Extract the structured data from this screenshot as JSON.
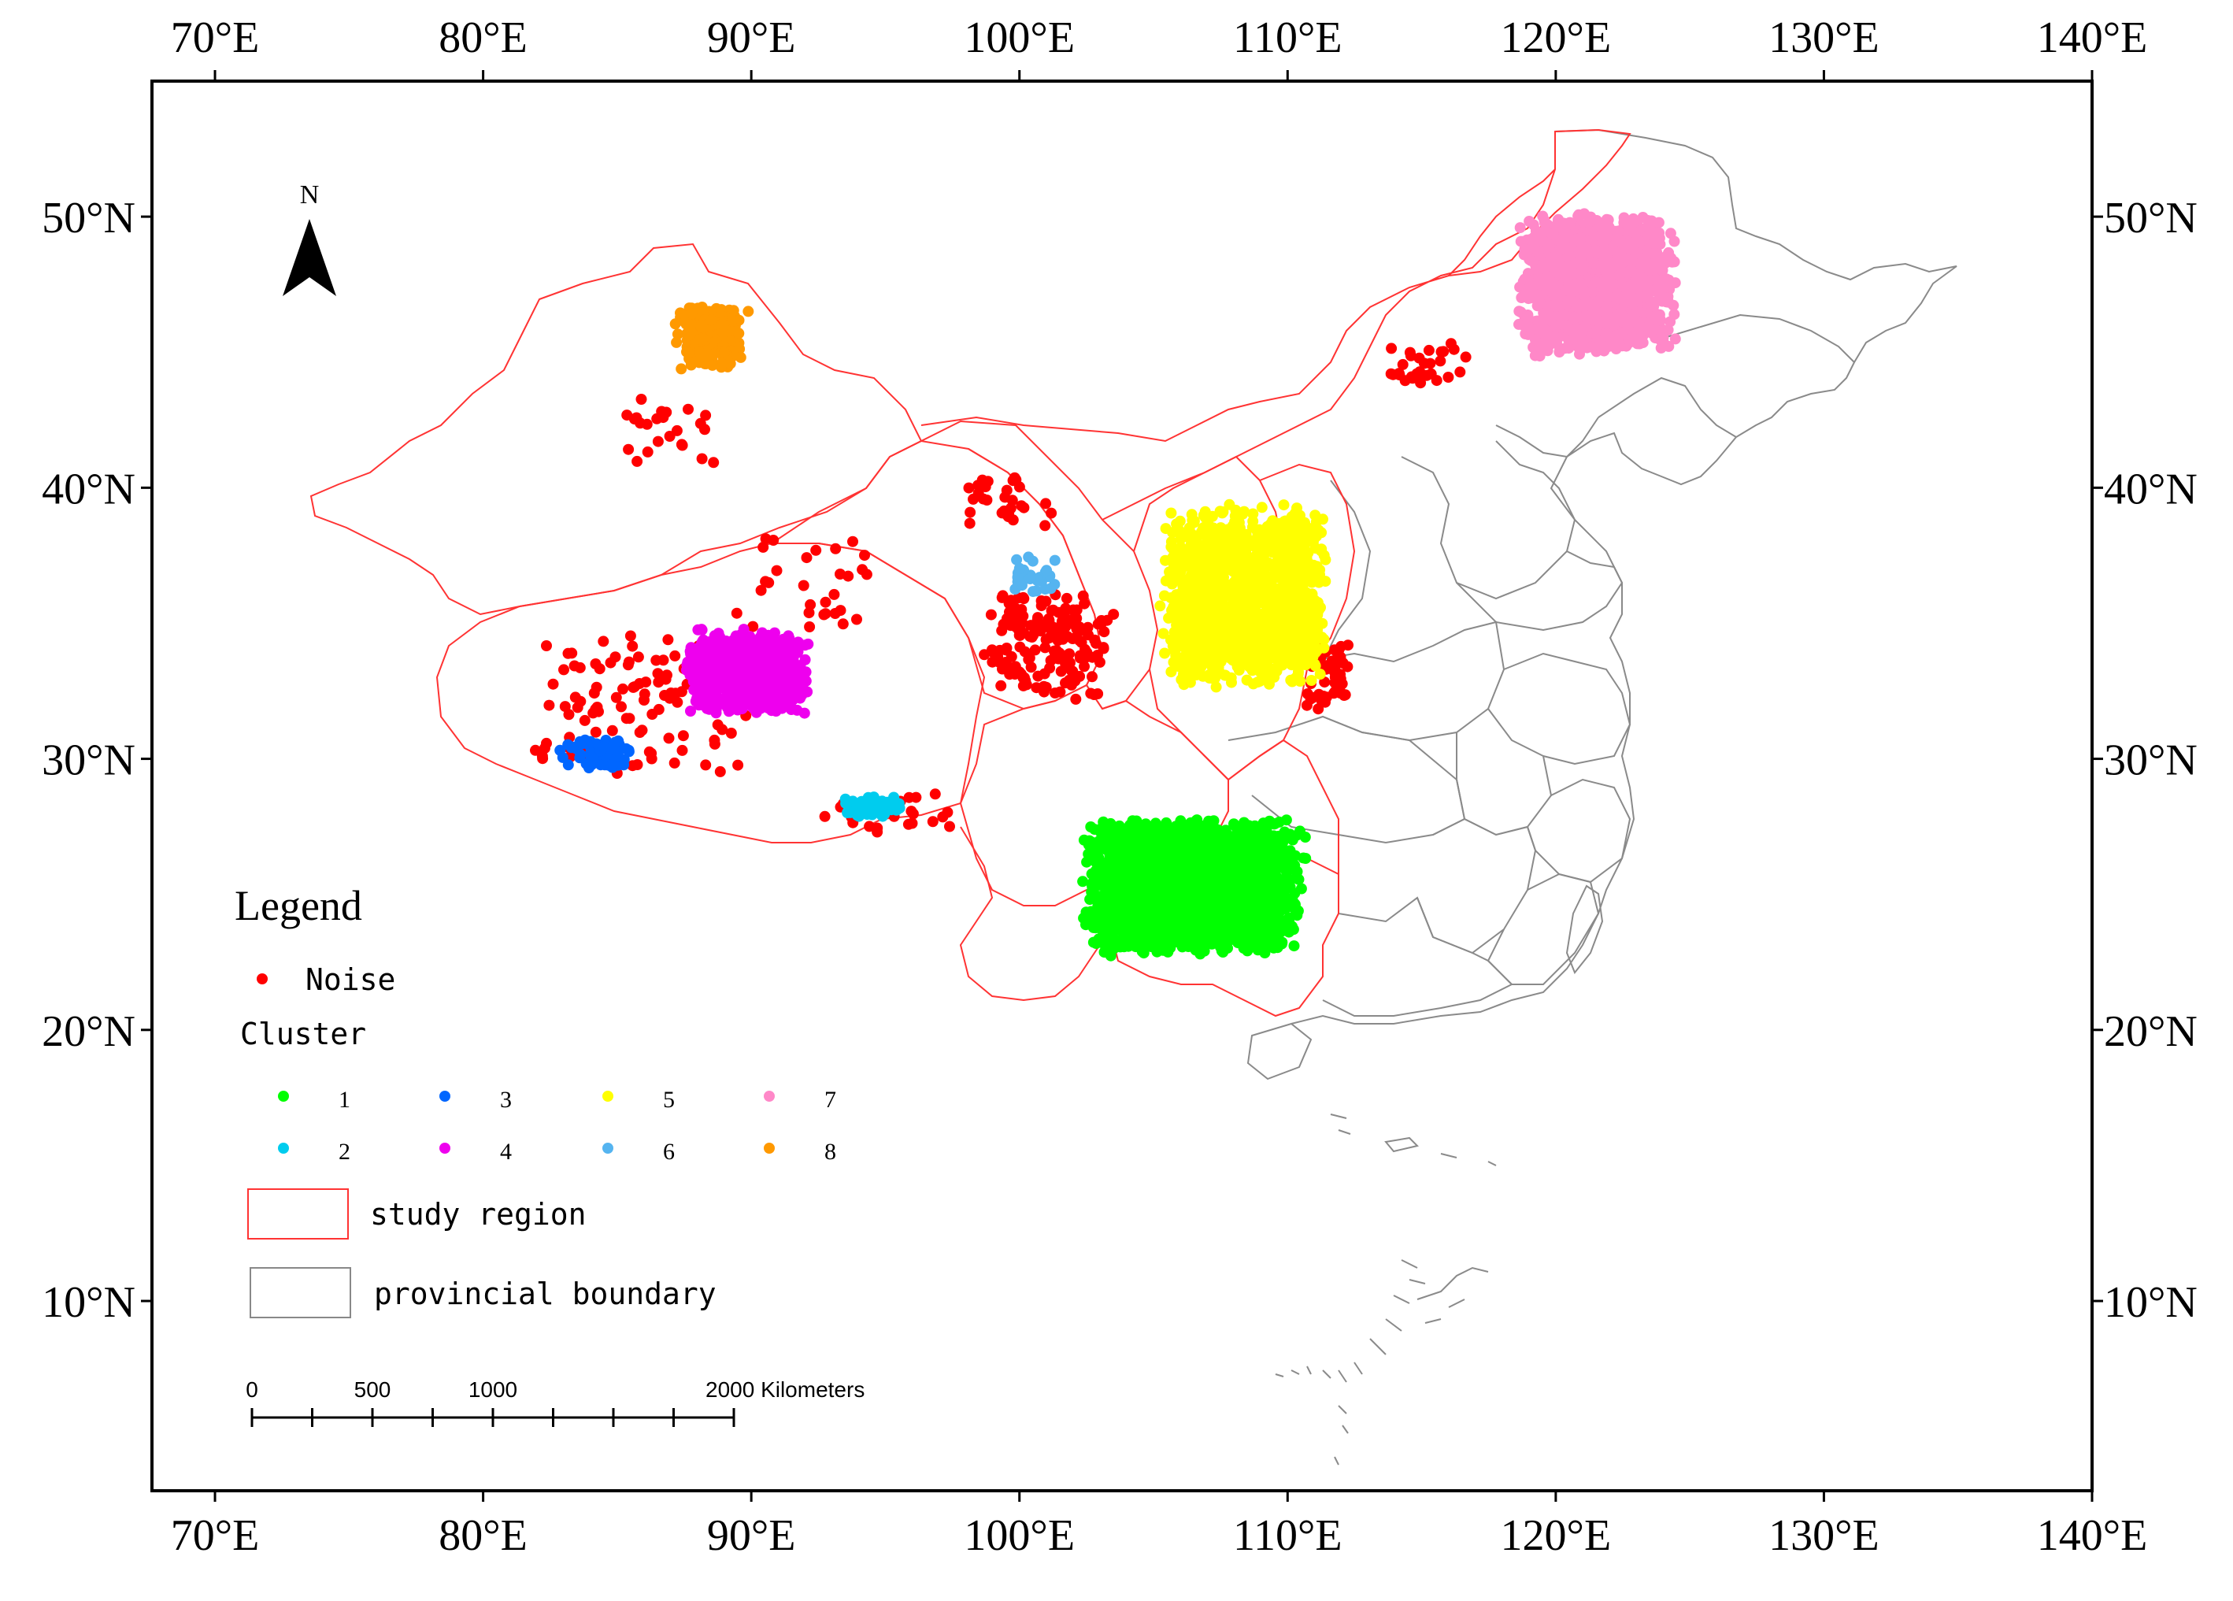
{
  "map": {
    "extent": {
      "lon_min": 67.65,
      "lon_max": 140,
      "lat_min": 3,
      "lat_max": 55
    },
    "lon_ticks": [
      {
        "value": 70,
        "label": "70°E"
      },
      {
        "value": 80,
        "label": "80°E"
      },
      {
        "value": 90,
        "label": "90°E"
      },
      {
        "value": 100,
        "label": "100°E"
      },
      {
        "value": 110,
        "label": "110°E"
      },
      {
        "value": 120,
        "label": "120°E"
      },
      {
        "value": 130,
        "label": "130°E"
      },
      {
        "value": 140,
        "label": "140°E"
      }
    ],
    "lat_ticks": [
      {
        "value": 10,
        "label": "10°N"
      },
      {
        "value": 20,
        "label": "20°N"
      },
      {
        "value": 30,
        "label": "30°N"
      },
      {
        "value": 40,
        "label": "40°N"
      },
      {
        "value": 50,
        "label": "50°N"
      }
    ],
    "north_arrow": {
      "label": "N",
      "symbol": "north-arrow-icon"
    },
    "colors": {
      "noise": "#ff0000",
      "cluster_1": "#00ff00",
      "cluster_2": "#00ccee",
      "cluster_3": "#0066ff",
      "cluster_4": "#ee00ee",
      "cluster_5": "#ffff00",
      "cluster_6": "#55b4f0",
      "cluster_7": "#ff88c8",
      "cluster_8": "#ff9900",
      "study_region": "#ff3333",
      "provincial_boundary": "#888888"
    },
    "clusters": [
      {
        "id": "1",
        "center": [
          106.5,
          25.3
        ],
        "spread": [
          4.2,
          2.6
        ],
        "count": 2600
      },
      {
        "id": "2",
        "center": [
          94.5,
          28.2
        ],
        "spread": [
          1.3,
          0.4
        ],
        "count": 60
      },
      {
        "id": "3",
        "center": [
          84.2,
          30.2
        ],
        "spread": [
          1.4,
          0.6
        ],
        "count": 60
      },
      {
        "id": "4",
        "center": [
          89.8,
          33.2
        ],
        "spread": [
          2.4,
          1.6
        ],
        "count": 700
      },
      {
        "id": "5",
        "center": [
          108.4,
          36.0
        ],
        "spread": [
          3.2,
          3.4
        ],
        "count": 1500
      },
      {
        "id": "6",
        "center": [
          100.6,
          36.8
        ],
        "spread": [
          0.9,
          0.8
        ],
        "count": 30
      },
      {
        "id": "7",
        "center": [
          121.5,
          47.5
        ],
        "spread": [
          3.0,
          2.7
        ],
        "count": 1500
      },
      {
        "id": "8",
        "center": [
          88.5,
          45.6
        ],
        "spread": [
          1.4,
          1.3
        ],
        "count": 180
      }
    ],
    "noise": {
      "regions": [
        {
          "center": [
            101.0,
            34.2
          ],
          "spread": [
            2.6,
            2.2
          ],
          "count": 170
        },
        {
          "center": [
            86.0,
            32.0
          ],
          "spread": [
            4.5,
            2.8
          ],
          "count": 110
        },
        {
          "center": [
            92.0,
            36.5
          ],
          "spread": [
            3.0,
            2.0
          ],
          "count": 30
        },
        {
          "center": [
            111.5,
            33.0
          ],
          "spread": [
            0.9,
            1.4
          ],
          "count": 45
        },
        {
          "center": [
            115.0,
            44.5
          ],
          "spread": [
            1.8,
            0.9
          ],
          "count": 30
        },
        {
          "center": [
            87.0,
            42.0
          ],
          "spread": [
            2.0,
            1.4
          ],
          "count": 25
        },
        {
          "center": [
            95.0,
            28.0
          ],
          "spread": [
            3.0,
            0.8
          ],
          "count": 25
        },
        {
          "center": [
            99.5,
            39.5
          ],
          "spread": [
            2.0,
            1.0
          ],
          "count": 30
        }
      ]
    },
    "legend": {
      "title": "Legend",
      "noise_label": "Noise",
      "cluster_heading": "Cluster",
      "cluster_items": [
        {
          "label": "1",
          "color_key": "cluster_1"
        },
        {
          "label": "2",
          "color_key": "cluster_2"
        },
        {
          "label": "3",
          "color_key": "cluster_3"
        },
        {
          "label": "4",
          "color_key": "cluster_4"
        },
        {
          "label": "5",
          "color_key": "cluster_5"
        },
        {
          "label": "6",
          "color_key": "cluster_6"
        },
        {
          "label": "7",
          "color_key": "cluster_7"
        },
        {
          "label": "8",
          "color_key": "cluster_8"
        }
      ],
      "study_region_label": "study region",
      "provincial_boundary_label": "provincial boundary"
    },
    "scale_bar": {
      "labels": [
        {
          "value": 0,
          "label": "0"
        },
        {
          "value": 500,
          "label": "500"
        },
        {
          "value": 1000,
          "label": "1000"
        },
        {
          "value": 2000,
          "label": "2000 Kilometers"
        }
      ],
      "max_km": 2000,
      "ticks": 9
    }
  }
}
